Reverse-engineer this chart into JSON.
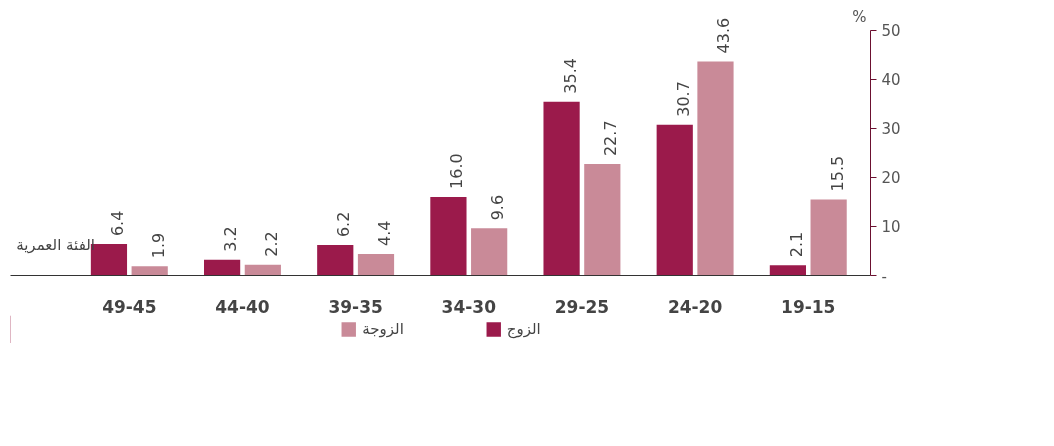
{
  "chart_data": {
    "type": "bar",
    "xlabel": "الفئة العمرية",
    "ylabel": "%",
    "categories": [
      "49-45",
      "44-40",
      "39-35",
      "34-30",
      "29-25",
      "24-20",
      "19-15"
    ],
    "series": [
      {
        "name": "الزوج",
        "color": "#9b1a4b",
        "values": [
          6.4,
          3.2,
          6.2,
          16.0,
          35.4,
          30.7,
          2.1
        ],
        "value_labels": [
          "6.4",
          "3.2",
          "6.2",
          "16.0",
          "35.4",
          "30.7",
          "2.1"
        ]
      },
      {
        "name": "الزوجة",
        "color": "#c98a98",
        "values": [
          1.9,
          2.2,
          4.4,
          9.6,
          22.7,
          43.6,
          15.5
        ],
        "value_labels": [
          "1.9",
          "2.2",
          "4.4",
          "9.6",
          "22.7",
          "43.6",
          "15.5"
        ]
      }
    ],
    "ylim": [
      0,
      50
    ],
    "yticks": [
      {
        "value": 0,
        "label": "-"
      },
      10,
      20,
      30,
      40,
      50
    ],
    "grid": false,
    "legend": "bottom"
  }
}
